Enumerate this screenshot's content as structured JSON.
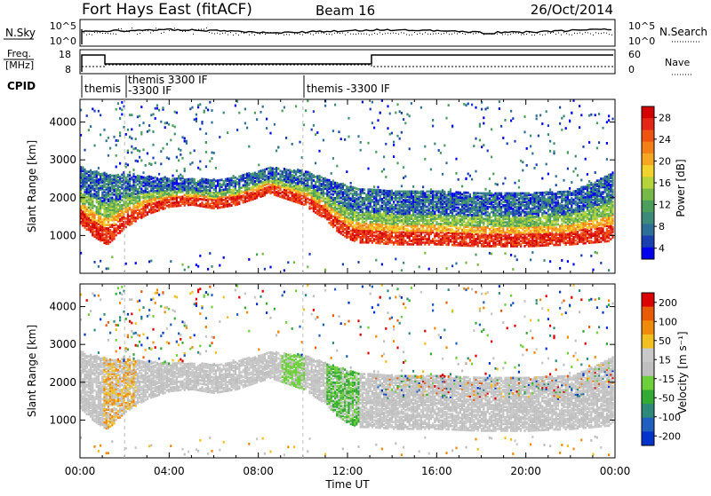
{
  "header": {
    "title": "Fort Hays East (fitACF)",
    "beam": "Beam 16",
    "date": "26/Oct/2014"
  },
  "status_panel": {
    "nsky_label": "N.Sky",
    "nsky_ticks": [
      "10^5",
      "10^0"
    ],
    "nsearch_label": "N.Search",
    "nsearch_ticks": [
      "10^5",
      "10^0"
    ],
    "freq_label_1": "Freq.",
    "freq_label_2": "[MHz]",
    "freq_ticks": [
      "18",
      "8"
    ],
    "nave_label": "Nave",
    "nave_ticks": [
      "60",
      "0"
    ],
    "cpid_label": "CPID",
    "cpid_entries": [
      {
        "line1": "themis",
        "line2": ""
      },
      {
        "line1": "themis 3300 IF",
        "line2": "-3300 IF"
      },
      {
        "line1": "themis -3300 IF",
        "line2": ""
      }
    ]
  },
  "colors": {
    "power": [
      "#0000ee",
      "#1a3fb0",
      "#2e6f9a",
      "#3c8a78",
      "#4c9e5c",
      "#77b947",
      "#b5d33a",
      "#f2d22c",
      "#f5a623",
      "#f57f17",
      "#ef5312",
      "#e52516",
      "#d40000"
    ],
    "velocity": [
      "#0033cc",
      "#1f5fbf",
      "#2d8a7a",
      "#33aa33",
      "#6dcf3a",
      "#bfbfbf",
      "#c8c8c8",
      "#f0c020",
      "#f08a0a",
      "#e85a05",
      "#dd0000"
    ]
  },
  "chart_data": [
    {
      "type": "heatmap",
      "name": "power",
      "title": "",
      "xlabel": "",
      "ylabel": "Slant Range [km]",
      "ylim": [
        0,
        4600
      ],
      "xlim": [
        0,
        24
      ],
      "x_ticks": [
        "00:00",
        "04:00",
        "08:00",
        "12:00",
        "16:00",
        "20:00",
        "00:00"
      ],
      "y_ticks": [
        "1000",
        "2000",
        "3000",
        "4000"
      ],
      "colorbar_label": "Power [dB]",
      "colorbar_ticks": [
        "4",
        "8",
        "12",
        "16",
        "20",
        "24",
        "28"
      ],
      "value_range": [
        0,
        30
      ],
      "band_profile": {
        "x_hours": [
          0,
          0.5,
          1,
          1.2,
          1.5,
          2,
          3,
          4,
          5,
          6,
          7,
          8,
          8.5,
          9,
          10,
          10.5,
          11,
          11.5,
          12,
          12.5,
          13,
          14,
          16,
          18,
          20,
          22,
          23,
          24
        ],
        "lower_km": [
          1500,
          1200,
          1000,
          950,
          1100,
          1400,
          1750,
          1950,
          2000,
          1900,
          2000,
          2200,
          2300,
          2200,
          2000,
          1800,
          1600,
          1300,
          1100,
          1000,
          1000,
          950,
          950,
          900,
          900,
          950,
          1000,
          1050
        ],
        "upper_km": [
          2700,
          2600,
          2550,
          2500,
          2500,
          2500,
          2450,
          2400,
          2400,
          2350,
          2450,
          2600,
          2700,
          2650,
          2600,
          2500,
          2400,
          2300,
          2200,
          2100,
          2100,
          2050,
          2050,
          2000,
          2000,
          2050,
          2300,
          2600
        ]
      }
    },
    {
      "type": "heatmap",
      "name": "velocity",
      "title": "",
      "xlabel": "Time UT",
      "ylabel": "Slant Range [km]",
      "ylim": [
        0,
        4600
      ],
      "xlim": [
        0,
        24
      ],
      "x_ticks": [
        "00:00",
        "04:00",
        "08:00",
        "12:00",
        "16:00",
        "20:00",
        "00:00"
      ],
      "y_ticks": [
        "1000",
        "2000",
        "3000",
        "4000"
      ],
      "colorbar_label": "Velocity [m s⁻¹]",
      "colorbar_ticks": [
        "200",
        "100",
        "50",
        "15",
        "-15",
        "-50",
        "-100",
        "-200"
      ],
      "value_range": [
        -250,
        250
      ]
    }
  ]
}
